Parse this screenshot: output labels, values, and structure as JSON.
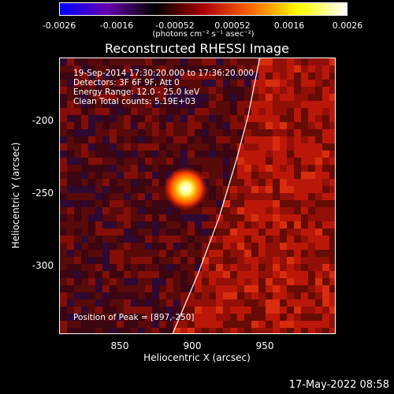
{
  "chart_data": {
    "type": "heatmap",
    "title": "Reconstructed RHESSI Image",
    "xlabel": "Heliocentric X (arcsec)",
    "ylabel": "Heliocentric Y (arcsec)",
    "xlim": [
      810,
      1000
    ],
    "ylim": [
      -350,
      -160
    ],
    "xticks": [
      "850",
      "900",
      "950"
    ],
    "yticks": [
      "-200",
      "-250",
      "-300"
    ],
    "colorbar": {
      "ticks": [
        "-0.0026",
        "-0.0016",
        "-0.00052",
        "0.00052",
        "0.0016",
        "0.0026"
      ],
      "range": [
        -0.0026,
        0.0026
      ],
      "units": "(photons cm⁻² s⁻¹ asec⁻²)"
    },
    "sources": [
      {
        "x": 897,
        "y": -250,
        "intensity": 0.0026
      }
    ],
    "annotations": [
      "19-Sep-2014 17:30:20.000 to 17:36:20.000",
      "Detectors: 3F 6F 9F, Att 0",
      "Energy Range: 12.0 - 25.0 keV",
      "Clean    Total counts: 5.19E+03"
    ],
    "peak_label": "Position of Peak = [897,-250]",
    "limb_curve": [
      [
        888,
        -350
      ],
      [
        905,
        -310
      ],
      [
        920,
        -270
      ],
      [
        932,
        -230
      ],
      [
        940,
        -200
      ],
      [
        946,
        -170
      ],
      [
        948,
        -160
      ]
    ]
  },
  "footer": {
    "timestamp": "17-May-2022 08:58"
  },
  "colors": {
    "background": "#000000",
    "text": "#ffffff",
    "colormap": [
      "#0000ff",
      "#6600aa",
      "#000000",
      "#aa0000",
      "#ff6600",
      "#ffff00",
      "#ffffff"
    ]
  }
}
